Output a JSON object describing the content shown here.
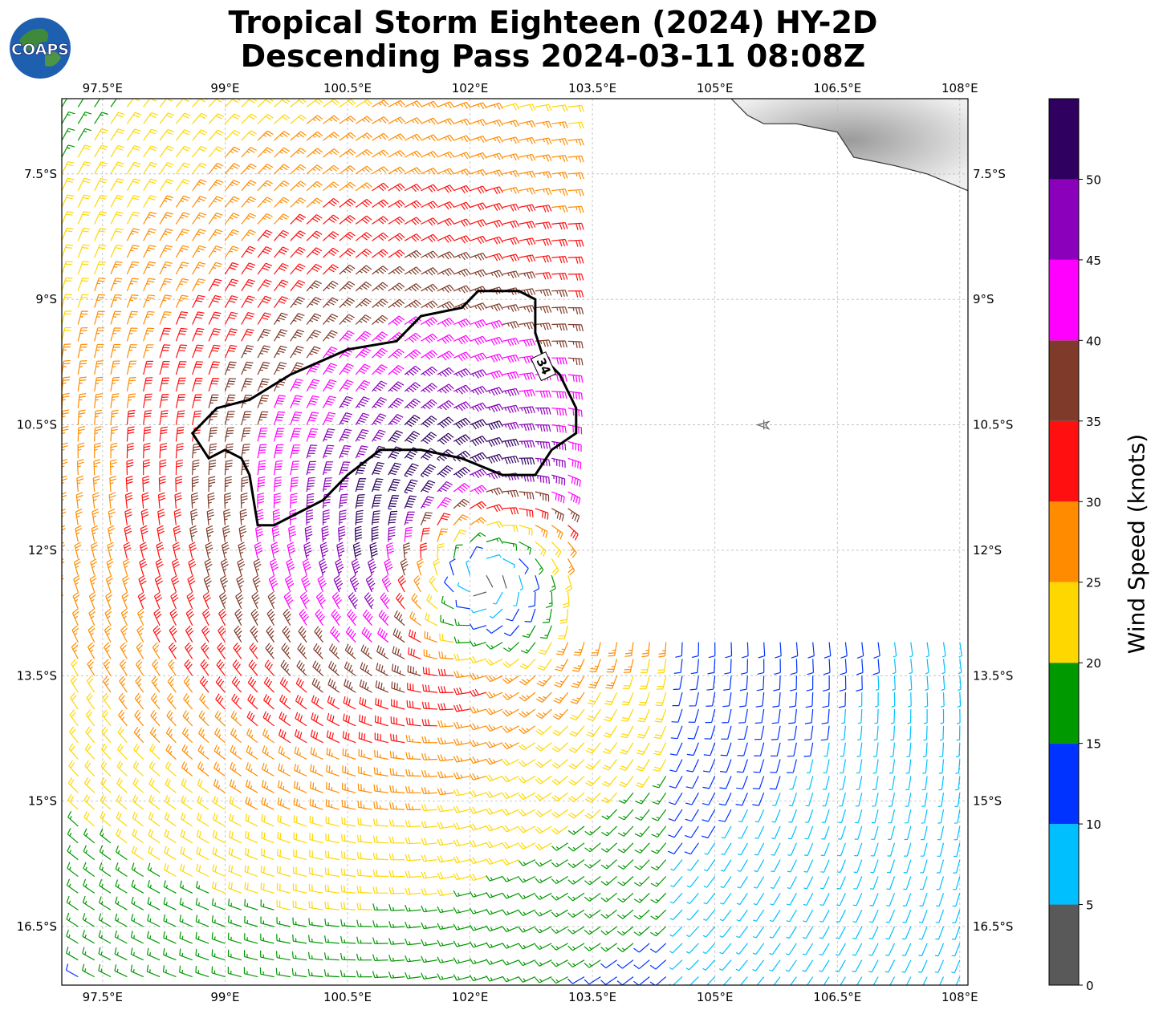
{
  "title": {
    "line1": "Tropical Storm Eighteen (2024) HY-2D",
    "line2": "Descending Pass 2024-03-11 08:08Z"
  },
  "logo": {
    "text": "COAPS",
    "icon": "globe-logo-icon"
  },
  "map": {
    "lon_range": [
      97.0,
      108.1
    ],
    "lat_range": [
      -17.2,
      -6.6
    ],
    "lon_ticks": [
      97.5,
      99,
      100.5,
      102,
      103.5,
      105,
      106.5,
      108
    ],
    "lon_tick_labels": [
      "97.5°E",
      "99°E",
      "100.5°E",
      "102°E",
      "103.5°E",
      "105°E",
      "106.5°E",
      "108°E"
    ],
    "lat_ticks": [
      -7.5,
      -9,
      -10.5,
      -12,
      -13.5,
      -15,
      -16.5
    ],
    "lat_tick_labels": [
      "7.5°S",
      "9°S",
      "10.5°S",
      "12°S",
      "13.5°S",
      "15°S",
      "16.5°S"
    ],
    "grid": true,
    "storm_center": {
      "lon": 102.2,
      "lat": -12.3
    },
    "contour_label": "34",
    "contour_lon_lat": [
      [
        98.6,
        -10.6
      ],
      [
        98.9,
        -10.3
      ],
      [
        99.3,
        -10.2
      ],
      [
        99.8,
        -9.9
      ],
      [
        100.5,
        -9.6
      ],
      [
        101.1,
        -9.5
      ],
      [
        101.4,
        -9.2
      ],
      [
        101.9,
        -9.1
      ],
      [
        102.1,
        -8.9
      ],
      [
        102.6,
        -8.9
      ],
      [
        102.8,
        -9.0
      ],
      [
        102.8,
        -9.4
      ],
      [
        102.9,
        -9.7
      ],
      [
        103.1,
        -9.9
      ],
      [
        103.3,
        -10.3
      ],
      [
        103.3,
        -10.6
      ],
      [
        103.0,
        -10.8
      ],
      [
        102.8,
        -11.1
      ],
      [
        102.4,
        -11.1
      ],
      [
        101.9,
        -10.9
      ],
      [
        101.4,
        -10.8
      ],
      [
        100.9,
        -10.8
      ],
      [
        100.5,
        -11.1
      ],
      [
        100.2,
        -11.4
      ],
      [
        99.6,
        -11.7
      ],
      [
        99.4,
        -11.7
      ],
      [
        99.3,
        -11.1
      ],
      [
        99.2,
        -10.9
      ],
      [
        99.0,
        -10.8
      ],
      [
        98.8,
        -10.9
      ],
      [
        98.6,
        -10.6
      ]
    ],
    "coastline_lon_lat": [
      [
        105.2,
        -6.6
      ],
      [
        105.4,
        -6.8
      ],
      [
        105.6,
        -6.9
      ],
      [
        106.0,
        -6.9
      ],
      [
        106.5,
        -7.0
      ],
      [
        106.7,
        -7.3
      ],
      [
        107.2,
        -7.4
      ],
      [
        107.6,
        -7.5
      ],
      [
        108.1,
        -7.7
      ]
    ],
    "marker_icon": "aircraft-marker-icon",
    "marker_lon_lat": [
      105.6,
      -10.5
    ]
  },
  "colorbar": {
    "label": "Wind Speed (knots)",
    "bounds": [
      0,
      5,
      10,
      15,
      20,
      25,
      30,
      35,
      40,
      45,
      50,
      55
    ],
    "tick_values": [
      0,
      5,
      10,
      15,
      20,
      25,
      30,
      35,
      40,
      45,
      50
    ],
    "tick_labels": [
      "0",
      "5",
      "10",
      "15",
      "20",
      "25",
      "30",
      "35",
      "40",
      "45",
      "50"
    ],
    "colors": [
      "#595959",
      "#00bfff",
      "#0033ff",
      "#009900",
      "#ffd700",
      "#ff8c00",
      "#ff0f0f",
      "#7f3a2a",
      "#ff00ff",
      "#8b00bb",
      "#300060"
    ]
  }
}
